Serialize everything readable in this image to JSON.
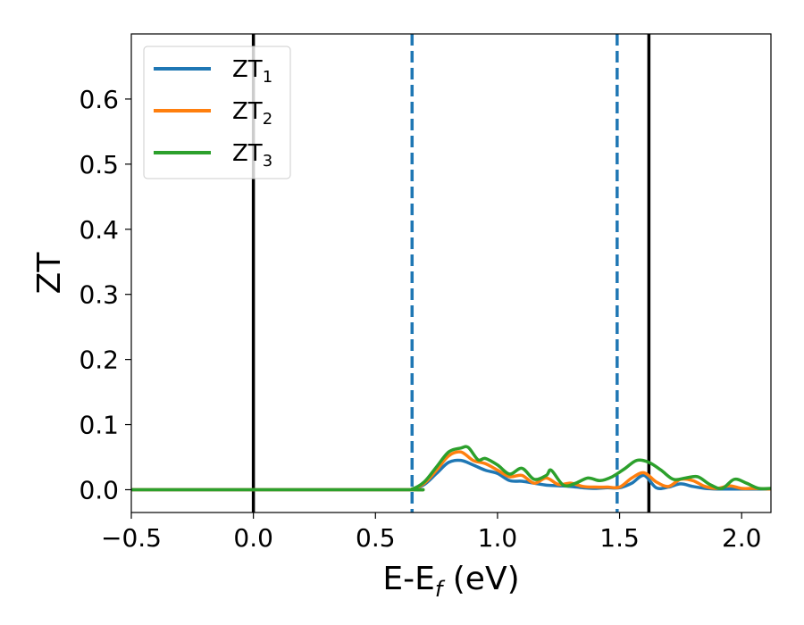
{
  "chart_data": {
    "type": "line",
    "xlabel": {
      "main": "E-E",
      "sub": "f",
      "suffix": " (eV)"
    },
    "ylabel": "ZT",
    "xlim": [
      -0.5,
      2.12
    ],
    "ylim": [
      -0.035,
      0.7
    ],
    "xticks": [
      {
        "value": -0.5,
        "label": "−0.5"
      },
      {
        "value": 0.0,
        "label": "0.0"
      },
      {
        "value": 0.5,
        "label": "0.5"
      },
      {
        "value": 1.0,
        "label": "1.0"
      },
      {
        "value": 1.5,
        "label": "1.5"
      },
      {
        "value": 2.0,
        "label": "2.0"
      }
    ],
    "yticks": [
      {
        "value": 0.0,
        "label": "0.0"
      },
      {
        "value": 0.1,
        "label": "0.1"
      },
      {
        "value": 0.2,
        "label": "0.2"
      },
      {
        "value": 0.3,
        "label": "0.3"
      },
      {
        "value": 0.4,
        "label": "0.4"
      },
      {
        "value": 0.5,
        "label": "0.5"
      },
      {
        "value": 0.6,
        "label": "0.6"
      }
    ],
    "legend": {
      "placement": "upper-left",
      "entries": [
        {
          "main": "ZT",
          "sub": "1",
          "color": "#1f77b4"
        },
        {
          "main": "ZT",
          "sub": "2",
          "color": "#ff7f0e"
        },
        {
          "main": "ZT",
          "sub": "3",
          "color": "#2ca02c"
        }
      ]
    },
    "vlines": [
      {
        "x": 0.0,
        "color": "#000000",
        "style": "solid"
      },
      {
        "x": 1.62,
        "color": "#000000",
        "style": "solid"
      },
      {
        "x": 0.65,
        "color": "#1f77b4",
        "style": "dashed"
      },
      {
        "x": 1.49,
        "color": "#1f77b4",
        "style": "dashed"
      }
    ],
    "series": [
      {
        "color": "#1f77b4",
        "x": [
          -0.5,
          0.6,
          0.65,
          0.7,
          0.75,
          0.8,
          0.85,
          0.9,
          0.95,
          1.0,
          1.05,
          1.1,
          1.15,
          1.2,
          1.25,
          1.3,
          1.35,
          1.4,
          1.45,
          1.5,
          1.55,
          1.6,
          1.65,
          1.7,
          1.75,
          1.8,
          1.85,
          1.9,
          1.95,
          2.0,
          2.05,
          2.12
        ],
        "y": [
          0.0,
          0.0,
          0.001,
          0.008,
          0.025,
          0.042,
          0.045,
          0.038,
          0.03,
          0.025,
          0.014,
          0.013,
          0.01,
          0.007,
          0.006,
          0.005,
          0.003,
          0.002,
          0.003,
          0.003,
          0.01,
          0.022,
          0.003,
          0.004,
          0.009,
          0.005,
          0.002,
          0.001,
          0.001,
          0.001,
          0.001,
          0.001
        ]
      },
      {
        "color": "#ff7f0e",
        "x": [
          -0.5,
          0.6,
          0.65,
          0.7,
          0.75,
          0.8,
          0.85,
          0.9,
          0.95,
          1.0,
          1.05,
          1.1,
          1.15,
          1.2,
          1.25,
          1.3,
          1.35,
          1.4,
          1.45,
          1.5,
          1.55,
          1.6,
          1.65,
          1.7,
          1.75,
          1.8,
          1.85,
          1.9,
          1.95,
          2.0,
          2.05,
          2.12
        ],
        "y": [
          0.0,
          0.0,
          0.001,
          0.01,
          0.03,
          0.052,
          0.058,
          0.045,
          0.04,
          0.03,
          0.02,
          0.022,
          0.01,
          0.018,
          0.008,
          0.01,
          0.005,
          0.004,
          0.004,
          0.004,
          0.018,
          0.026,
          0.012,
          0.005,
          0.016,
          0.014,
          0.005,
          0.002,
          0.006,
          0.002,
          0.002,
          0.001
        ]
      },
      {
        "color": "#2ca02c",
        "x": [
          -0.5,
          0.6,
          0.65,
          0.7,
          0.75,
          0.8,
          0.85,
          0.88,
          0.92,
          0.95,
          1.0,
          1.05,
          1.1,
          1.15,
          1.2,
          1.22,
          1.27,
          1.32,
          1.37,
          1.42,
          1.47,
          1.52,
          1.57,
          1.62,
          1.67,
          1.72,
          1.77,
          1.82,
          1.87,
          1.92,
          1.97,
          2.02,
          2.07,
          2.12
        ],
        "y": [
          0.0,
          0.0,
          0.001,
          0.012,
          0.035,
          0.058,
          0.064,
          0.065,
          0.046,
          0.048,
          0.038,
          0.024,
          0.033,
          0.016,
          0.022,
          0.03,
          0.007,
          0.01,
          0.018,
          0.014,
          0.02,
          0.032,
          0.045,
          0.042,
          0.03,
          0.016,
          0.018,
          0.02,
          0.008,
          0.002,
          0.016,
          0.01,
          0.002,
          0.002
        ]
      }
    ]
  }
}
